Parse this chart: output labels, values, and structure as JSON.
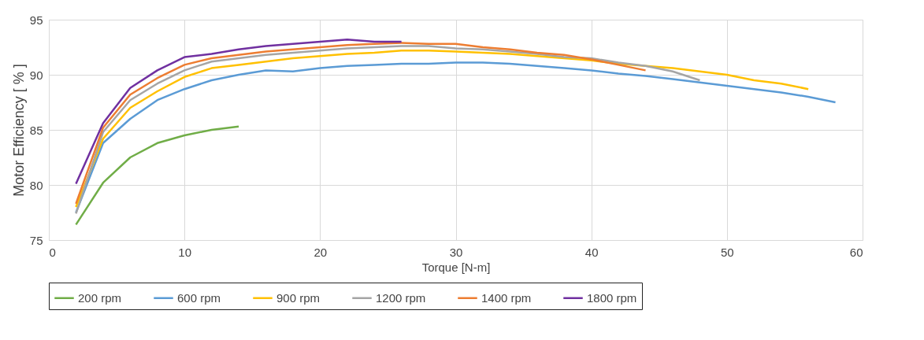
{
  "chart_data": {
    "type": "line",
    "xlabel": "Torque [N-m]",
    "ylabel": "Motor Efficiency [ % ]",
    "xlim": [
      0,
      60
    ],
    "xticks": [
      0,
      10,
      20,
      30,
      40,
      50,
      60
    ],
    "ylim": [
      75,
      95
    ],
    "yticks": [
      75,
      80,
      85,
      90,
      95
    ],
    "grid": true,
    "legend": "bottom",
    "marker": "none",
    "line_style": "solid",
    "series": [
      {
        "name": "200 rpm",
        "color": "#70ad47",
        "x": [
          2,
          4,
          6,
          8,
          10,
          12,
          14
        ],
        "values": [
          76.4,
          80.2,
          82.5,
          83.8,
          84.5,
          85.0,
          85.3
        ]
      },
      {
        "name": "600 rpm",
        "color": "#5b9bd5",
        "x": [
          2,
          4,
          6,
          8,
          10,
          12,
          14,
          16,
          18,
          20,
          22,
          24,
          26,
          28,
          30,
          32,
          34,
          36,
          38,
          40,
          42,
          44,
          46,
          48,
          50,
          52,
          54,
          56,
          58
        ],
        "values": [
          77.5,
          83.8,
          86.0,
          87.7,
          88.7,
          89.5,
          90.0,
          90.4,
          90.3,
          90.6,
          90.8,
          90.9,
          91.0,
          91.0,
          91.1,
          91.1,
          91.0,
          90.8,
          90.6,
          90.4,
          90.1,
          89.9,
          89.6,
          89.3,
          89.0,
          88.7,
          88.4,
          88.0,
          87.5
        ]
      },
      {
        "name": "900 rpm",
        "color": "#ffc000",
        "x": [
          2,
          4,
          6,
          8,
          10,
          12,
          14,
          16,
          18,
          20,
          22,
          24,
          26,
          28,
          30,
          32,
          34,
          36,
          38,
          40,
          42,
          44,
          46,
          48,
          50,
          52,
          54,
          56
        ],
        "values": [
          78.0,
          84.2,
          87.0,
          88.5,
          89.8,
          90.6,
          90.9,
          91.2,
          91.5,
          91.7,
          91.9,
          92.0,
          92.2,
          92.2,
          92.1,
          92.0,
          91.9,
          91.7,
          91.5,
          91.3,
          91.0,
          90.8,
          90.6,
          90.3,
          90.0,
          89.5,
          89.2,
          88.7
        ]
      },
      {
        "name": "1200 rpm",
        "color": "#a5a5a5",
        "x": [
          2,
          4,
          6,
          8,
          10,
          12,
          14,
          16,
          18,
          20,
          22,
          24,
          26,
          28,
          30,
          32,
          34,
          36,
          38,
          40,
          42,
          44,
          46,
          48
        ],
        "values": [
          77.4,
          84.8,
          87.7,
          89.2,
          90.4,
          91.2,
          91.5,
          91.8,
          92.0,
          92.2,
          92.4,
          92.5,
          92.6,
          92.6,
          92.4,
          92.3,
          92.1,
          91.9,
          91.6,
          91.5,
          91.1,
          90.8,
          90.3,
          89.5
        ]
      },
      {
        "name": "1400 rpm",
        "color": "#ed7d31",
        "x": [
          2,
          4,
          6,
          8,
          10,
          12,
          14,
          16,
          18,
          20,
          22,
          24,
          26,
          28,
          30,
          32,
          34,
          36,
          38,
          40,
          42,
          44
        ],
        "values": [
          78.3,
          85.2,
          88.2,
          89.7,
          90.9,
          91.5,
          91.8,
          92.1,
          92.3,
          92.5,
          92.7,
          92.8,
          92.9,
          92.8,
          92.8,
          92.5,
          92.3,
          92.0,
          91.8,
          91.4,
          90.9,
          90.4
        ]
      },
      {
        "name": "1800 rpm",
        "color": "#7030a0",
        "x": [
          2,
          4,
          6,
          8,
          10,
          12,
          14,
          16,
          18,
          20,
          22,
          24,
          26
        ],
        "values": [
          80.1,
          85.6,
          88.8,
          90.4,
          91.6,
          91.9,
          92.3,
          92.6,
          92.8,
          93.0,
          93.2,
          93.0,
          93.0
        ]
      }
    ]
  }
}
